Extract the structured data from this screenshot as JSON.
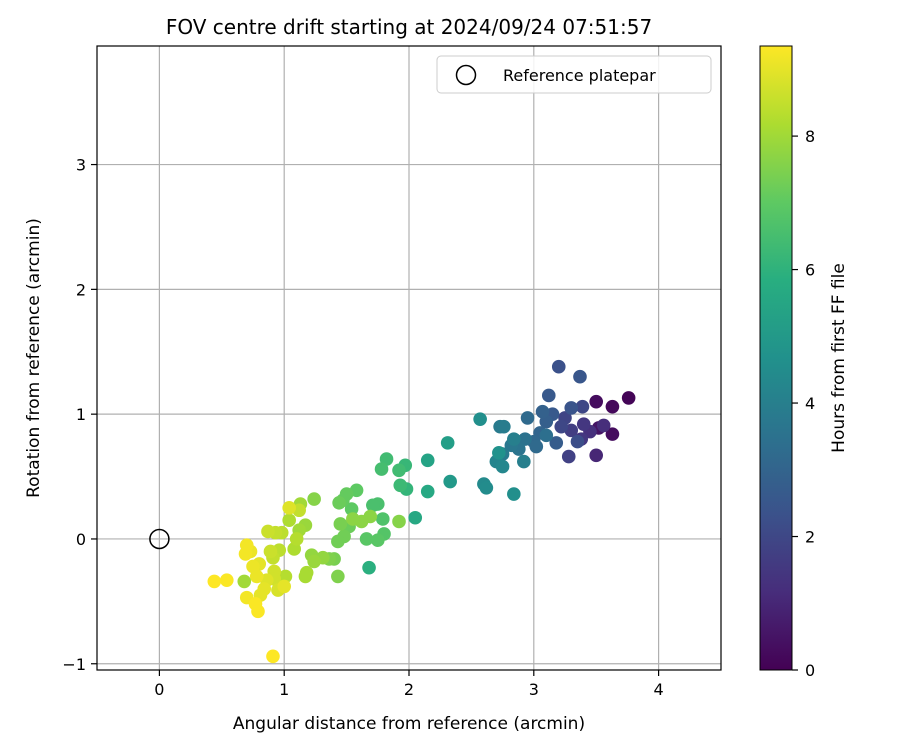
{
  "chart_data": {
    "type": "scatter",
    "title": "FOV centre drift starting at 2024/09/24 07:51:57",
    "xlabel": "Angular distance from reference (arcmin)",
    "ylabel": "Rotation from reference (arcmin)",
    "xlim": [
      -0.5,
      4.5
    ],
    "ylim": [
      -1.05,
      3.95
    ],
    "xticks": [
      0,
      1,
      2,
      3,
      4
    ],
    "yticks": [
      -1,
      0,
      1,
      2,
      3
    ],
    "grid": true,
    "legend": {
      "placement": "upper-right",
      "entries": [
        "Reference platepar"
      ]
    },
    "reference_point": {
      "x": 0,
      "y": 0,
      "label": "Reference platepar"
    },
    "colorbar": {
      "label": "Hours from first FF file",
      "min": 0,
      "max": 9.35,
      "ticks": [
        0,
        2,
        4,
        6,
        8
      ],
      "colormap": "viridis"
    },
    "points": [
      {
        "x": 3.76,
        "y": 1.13,
        "c": 0.1
      },
      {
        "x": 3.63,
        "y": 1.06,
        "c": 0.2
      },
      {
        "x": 3.5,
        "y": 1.1,
        "c": 0.3
      },
      {
        "x": 3.63,
        "y": 0.84,
        "c": 0.3
      },
      {
        "x": 3.52,
        "y": 0.89,
        "c": 0.5
      },
      {
        "x": 3.5,
        "y": 0.67,
        "c": 1.0
      },
      {
        "x": 3.56,
        "y": 0.91,
        "c": 1.2
      },
      {
        "x": 3.45,
        "y": 0.86,
        "c": 1.3
      },
      {
        "x": 3.4,
        "y": 0.92,
        "c": 1.5
      },
      {
        "x": 3.38,
        "y": 0.8,
        "c": 1.5
      },
      {
        "x": 3.3,
        "y": 0.87,
        "c": 1.7
      },
      {
        "x": 3.28,
        "y": 0.66,
        "c": 1.8
      },
      {
        "x": 3.25,
        "y": 0.97,
        "c": 1.9
      },
      {
        "x": 3.22,
        "y": 0.9,
        "c": 2.0
      },
      {
        "x": 3.39,
        "y": 1.06,
        "c": 2.0
      },
      {
        "x": 3.35,
        "y": 0.78,
        "c": 2.2
      },
      {
        "x": 3.2,
        "y": 1.38,
        "c": 2.3
      },
      {
        "x": 3.37,
        "y": 1.3,
        "c": 2.5
      },
      {
        "x": 3.3,
        "y": 1.05,
        "c": 2.4
      },
      {
        "x": 3.15,
        "y": 1.0,
        "c": 2.6
      },
      {
        "x": 3.12,
        "y": 1.15,
        "c": 2.6
      },
      {
        "x": 3.18,
        "y": 0.77,
        "c": 2.7
      },
      {
        "x": 3.1,
        "y": 0.94,
        "c": 2.8
      },
      {
        "x": 3.07,
        "y": 1.02,
        "c": 2.9
      },
      {
        "x": 3.05,
        "y": 0.85,
        "c": 3.0
      },
      {
        "x": 3.0,
        "y": 0.78,
        "c": 3.1
      },
      {
        "x": 2.95,
        "y": 0.97,
        "c": 3.2
      },
      {
        "x": 3.02,
        "y": 0.74,
        "c": 3.2
      },
      {
        "x": 3.1,
        "y": 0.83,
        "c": 3.4
      },
      {
        "x": 2.93,
        "y": 0.8,
        "c": 3.5
      },
      {
        "x": 2.88,
        "y": 0.72,
        "c": 3.6
      },
      {
        "x": 2.82,
        "y": 0.75,
        "c": 3.7
      },
      {
        "x": 2.75,
        "y": 0.68,
        "c": 3.8
      },
      {
        "x": 2.73,
        "y": 0.9,
        "c": 3.8
      },
      {
        "x": 2.76,
        "y": 0.9,
        "c": 3.9
      },
      {
        "x": 2.92,
        "y": 0.62,
        "c": 4.0
      },
      {
        "x": 2.84,
        "y": 0.8,
        "c": 4.0
      },
      {
        "x": 2.7,
        "y": 0.62,
        "c": 4.2
      },
      {
        "x": 2.75,
        "y": 0.58,
        "c": 4.3
      },
      {
        "x": 2.6,
        "y": 0.44,
        "c": 4.4
      },
      {
        "x": 2.62,
        "y": 0.41,
        "c": 4.5
      },
      {
        "x": 2.84,
        "y": 0.36,
        "c": 4.6
      },
      {
        "x": 2.57,
        "y": 0.96,
        "c": 4.6
      },
      {
        "x": 2.72,
        "y": 0.69,
        "c": 4.7
      },
      {
        "x": 2.33,
        "y": 0.46,
        "c": 5.0
      },
      {
        "x": 2.31,
        "y": 0.77,
        "c": 5.2
      },
      {
        "x": 2.15,
        "y": 0.63,
        "c": 5.4
      },
      {
        "x": 2.15,
        "y": 0.38,
        "c": 5.6
      },
      {
        "x": 2.05,
        "y": 0.17,
        "c": 5.6
      },
      {
        "x": 1.68,
        "y": -0.23,
        "c": 5.9
      },
      {
        "x": 1.98,
        "y": 0.4,
        "c": 6.1
      },
      {
        "x": 1.97,
        "y": 0.59,
        "c": 6.2
      },
      {
        "x": 1.93,
        "y": 0.43,
        "c": 6.3
      },
      {
        "x": 1.92,
        "y": 0.55,
        "c": 6.4
      },
      {
        "x": 1.82,
        "y": 0.64,
        "c": 6.4
      },
      {
        "x": 1.78,
        "y": 0.56,
        "c": 6.5
      },
      {
        "x": 1.75,
        "y": 0.28,
        "c": 6.6
      },
      {
        "x": 1.71,
        "y": 0.27,
        "c": 6.6
      },
      {
        "x": 1.79,
        "y": 0.16,
        "c": 6.7
      },
      {
        "x": 1.8,
        "y": 0.04,
        "c": 6.8
      },
      {
        "x": 1.75,
        "y": -0.01,
        "c": 6.9
      },
      {
        "x": 1.66,
        "y": 0.0,
        "c": 6.9
      },
      {
        "x": 1.58,
        "y": 0.39,
        "c": 7.0
      },
      {
        "x": 1.54,
        "y": 0.24,
        "c": 7.0
      },
      {
        "x": 1.5,
        "y": 0.36,
        "c": 7.1
      },
      {
        "x": 1.47,
        "y": 0.31,
        "c": 7.1
      },
      {
        "x": 1.44,
        "y": 0.29,
        "c": 7.2
      },
      {
        "x": 1.52,
        "y": 0.1,
        "c": 7.2
      },
      {
        "x": 1.48,
        "y": 0.02,
        "c": 7.3
      },
      {
        "x": 1.43,
        "y": -0.02,
        "c": 7.3
      },
      {
        "x": 1.45,
        "y": 0.12,
        "c": 7.4
      },
      {
        "x": 1.4,
        "y": -0.16,
        "c": 7.4
      },
      {
        "x": 1.36,
        "y": -0.16,
        "c": 7.5
      },
      {
        "x": 1.43,
        "y": -0.3,
        "c": 7.5
      },
      {
        "x": 1.24,
        "y": 0.32,
        "c": 7.6
      },
      {
        "x": 1.92,
        "y": 0.14,
        "c": 7.6
      },
      {
        "x": 1.69,
        "y": 0.18,
        "c": 7.7
      },
      {
        "x": 1.62,
        "y": 0.14,
        "c": 7.7
      },
      {
        "x": 1.55,
        "y": 0.16,
        "c": 7.7
      },
      {
        "x": 1.31,
        "y": -0.15,
        "c": 7.8
      },
      {
        "x": 1.22,
        "y": -0.13,
        "c": 7.8
      },
      {
        "x": 1.24,
        "y": -0.18,
        "c": 7.9
      },
      {
        "x": 1.17,
        "y": 0.11,
        "c": 7.9
      },
      {
        "x": 1.13,
        "y": 0.28,
        "c": 8.0
      },
      {
        "x": 1.12,
        "y": 0.07,
        "c": 8.0
      },
      {
        "x": 1.18,
        "y": -0.27,
        "c": 8.1
      },
      {
        "x": 1.17,
        "y": -0.3,
        "c": 8.1
      },
      {
        "x": 1.08,
        "y": -0.08,
        "c": 8.2
      },
      {
        "x": 1.04,
        "y": 0.15,
        "c": 8.2
      },
      {
        "x": 1.1,
        "y": 0.0,
        "c": 8.3
      },
      {
        "x": 1.01,
        "y": -0.3,
        "c": 8.3
      },
      {
        "x": 0.98,
        "y": 0.05,
        "c": 8.4
      },
      {
        "x": 0.96,
        "y": -0.09,
        "c": 8.4
      },
      {
        "x": 0.91,
        "y": -0.15,
        "c": 8.5
      },
      {
        "x": 0.93,
        "y": 0.05,
        "c": 8.5
      },
      {
        "x": 0.87,
        "y": 0.06,
        "c": 8.6
      },
      {
        "x": 0.89,
        "y": -0.1,
        "c": 8.6
      },
      {
        "x": 0.92,
        "y": -0.26,
        "c": 8.7
      },
      {
        "x": 0.92,
        "y": -0.32,
        "c": 8.7
      },
      {
        "x": 0.95,
        "y": -0.41,
        "c": 8.8
      },
      {
        "x": 1.12,
        "y": 0.23,
        "c": 8.5
      },
      {
        "x": 1.04,
        "y": 0.25,
        "c": 8.9
      },
      {
        "x": 0.86,
        "y": -0.33,
        "c": 8.9
      },
      {
        "x": 0.84,
        "y": -0.4,
        "c": 9.0
      },
      {
        "x": 0.81,
        "y": -0.45,
        "c": 9.0
      },
      {
        "x": 0.8,
        "y": -0.2,
        "c": 9.0
      },
      {
        "x": 0.78,
        "y": -0.3,
        "c": 9.1
      },
      {
        "x": 0.75,
        "y": -0.22,
        "c": 9.1
      },
      {
        "x": 0.73,
        "y": -0.1,
        "c": 9.1
      },
      {
        "x": 0.7,
        "y": -0.05,
        "c": 9.2
      },
      {
        "x": 0.69,
        "y": -0.12,
        "c": 9.2
      },
      {
        "x": 0.7,
        "y": -0.47,
        "c": 9.2
      },
      {
        "x": 0.77,
        "y": -0.52,
        "c": 9.3
      },
      {
        "x": 0.79,
        "y": -0.58,
        "c": 9.3
      },
      {
        "x": 0.54,
        "y": -0.33,
        "c": 9.3
      },
      {
        "x": 0.44,
        "y": -0.34,
        "c": 9.35
      },
      {
        "x": 0.91,
        "y": -0.94,
        "c": 9.35
      },
      {
        "x": 0.68,
        "y": -0.34,
        "c": 8.0
      },
      {
        "x": 1.0,
        "y": -0.38,
        "c": 9.0
      }
    ]
  }
}
